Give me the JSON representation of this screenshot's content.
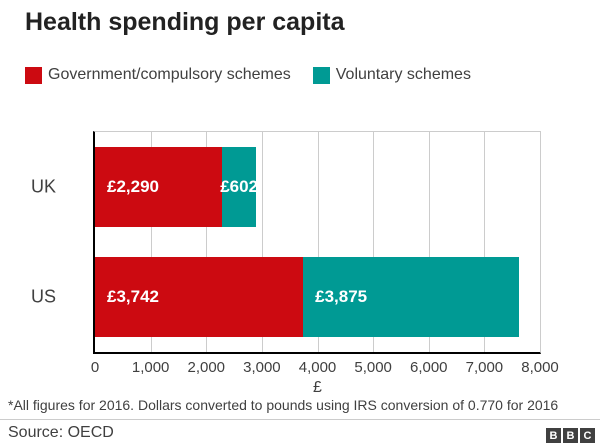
{
  "title": "Health spending per capita",
  "chart_data": {
    "type": "bar",
    "orientation": "horizontal",
    "stacked": true,
    "categories": [
      "UK",
      "US"
    ],
    "series": [
      {
        "name": "Government/compulsory schemes",
        "color": "#cc0a11",
        "values": [
          2290,
          3742
        ],
        "value_labels": [
          "£2,290",
          "£3,742"
        ]
      },
      {
        "name": "Voluntary schemes",
        "color": "#009a94",
        "values": [
          602,
          3875
        ],
        "value_labels": [
          "£602",
          "£3,875"
        ]
      }
    ],
    "xlabel": "£",
    "xlim": [
      0,
      8000
    ],
    "xtick_labels": [
      "0",
      "1,000",
      "2,000",
      "3,000",
      "4,000",
      "5,000",
      "6,000",
      "7,000",
      "8,000"
    ],
    "grid": "vertical",
    "legend_position": "top",
    "bar_label_color": "#ffffff",
    "gridline_color": "#cccccc",
    "axis_line_color": "#000000"
  },
  "footnote": "*All figures for 2016. Dollars converted to pounds using IRS conversion of 0.770 for 2016",
  "source": "Source: OECD",
  "bbc_logo": {
    "letters": [
      "B",
      "B",
      "C"
    ]
  }
}
